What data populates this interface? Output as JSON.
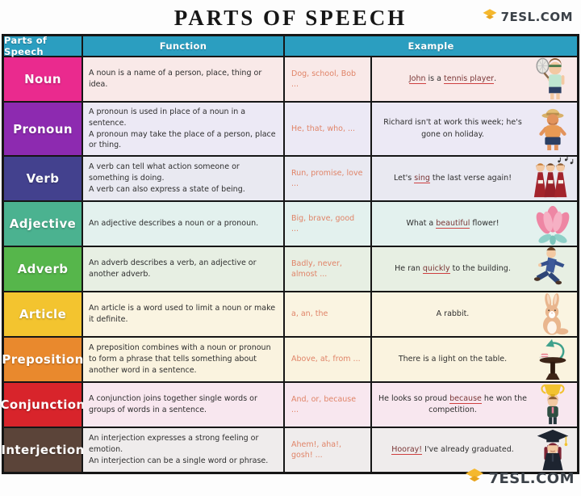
{
  "page": {
    "title": "PARTS OF SPEECH",
    "brand": "7ESL.COM"
  },
  "colors": {
    "header_bg": "#2b9ec0",
    "border": "#161616",
    "example_words_text": "#e08468",
    "underline": "#cf4040",
    "brand_yellow": "#f5b82e"
  },
  "table": {
    "headers": {
      "col1": "Parts of Speech",
      "col2": "Function",
      "col3": "Example"
    },
    "rows": [
      {
        "id": "noun",
        "label": "Noun",
        "label_color": "#ea2a8e",
        "row_color": "#f9e9e8",
        "function_lines": [
          "A noun is a name of a person, place, thing or idea."
        ],
        "example_words": "Dog, school, Bob ...",
        "sentence": [
          {
            "t": "John",
            "u": true
          },
          {
            "t": " is a "
          },
          {
            "t": "tennis player",
            "u": true
          },
          {
            "t": "."
          }
        ],
        "icon": "tennis-player-illustration"
      },
      {
        "id": "pronoun",
        "label": "Pronoun",
        "label_color": "#8d2ab0",
        "row_color": "#ece9f5",
        "function_lines": [
          "A pronoun is used in place of a noun in a sentence.",
          "A pronoun may take the place of a person, place or thing."
        ],
        "example_words": "He, that, who, ...",
        "sentence": [
          {
            "t": "Richard isn't at work this week; he's gone on holiday."
          }
        ],
        "icon": "holiday-man-illustration"
      },
      {
        "id": "verb",
        "label": "Verb",
        "label_color": "#43418e",
        "row_color": "#e9e9f1",
        "function_lines": [
          "A verb can tell what action someone or something is doing.",
          "A verb can also express a state of being."
        ],
        "example_words": "Run, promise, love ...",
        "sentence": [
          {
            "t": "Let's "
          },
          {
            "t": "sing",
            "u": true
          },
          {
            "t": " the last verse again!"
          }
        ],
        "icon": "choir-singers-illustration"
      },
      {
        "id": "adjective",
        "label": "Adjective",
        "label_color": "#4bb290",
        "row_color": "#e3f1ee",
        "function_lines": [
          "An adjective describes a noun or a pronoun."
        ],
        "example_words": "Big, brave, good ...",
        "sentence": [
          {
            "t": "What a "
          },
          {
            "t": "beautiful",
            "u": true
          },
          {
            "t": " flower!"
          }
        ],
        "icon": "flower-illustration"
      },
      {
        "id": "adverb",
        "label": "Adverb",
        "label_color": "#56b64b",
        "row_color": "#e7efe3",
        "function_lines": [
          "An adverb describes a verb, an adjective or another adverb."
        ],
        "example_words": "Badly, never, almost ...",
        "sentence": [
          {
            "t": "He ran "
          },
          {
            "t": "quickly",
            "u": true
          },
          {
            "t": " to the building."
          }
        ],
        "icon": "running-man-illustration"
      },
      {
        "id": "article",
        "label": "Article",
        "label_color": "#f3c42f",
        "row_color": "#faf4e1",
        "function_lines": [
          "An article is a word used to limit a noun or make it definite."
        ],
        "example_words": "a, an, the",
        "sentence": [
          {
            "t": "A rabbit."
          }
        ],
        "icon": "rabbit-illustration"
      },
      {
        "id": "preposition",
        "label": "Preposition",
        "label_color": "#e9892d",
        "row_color": "#faf3df",
        "function_lines": [
          "A preposition combines with a noun or pronoun to form a phrase that tells something about another word in a sentence."
        ],
        "example_words": "Above, at, from ...",
        "sentence": [
          {
            "t": "There is a light on the table."
          }
        ],
        "icon": "table-lamp-illustration"
      },
      {
        "id": "conjunction",
        "label": "Conjunction",
        "label_color": "#d8242b",
        "row_color": "#f8e7ef",
        "function_lines": [
          "A conjunction joins together single words or groups of words in a sentence."
        ],
        "example_words": "And, or, because ...",
        "sentence": [
          {
            "t": "He looks so proud "
          },
          {
            "t": "because",
            "u": true
          },
          {
            "t": " he won the competition."
          }
        ],
        "icon": "trophy-kid-illustration"
      },
      {
        "id": "interjection",
        "label": "Interjection",
        "label_color": "#5b4439",
        "row_color": "#efecec",
        "function_lines": [
          "An interjection expresses a strong feeling or emotion.",
          "An interjection can be a single word or phrase."
        ],
        "example_words": "Ahem!, aha!, gosh! ...",
        "sentence": [
          {
            "t": "Hooray!",
            "u": true
          },
          {
            "t": " I've already graduated."
          }
        ],
        "icon": "graduate-illustration"
      }
    ]
  }
}
